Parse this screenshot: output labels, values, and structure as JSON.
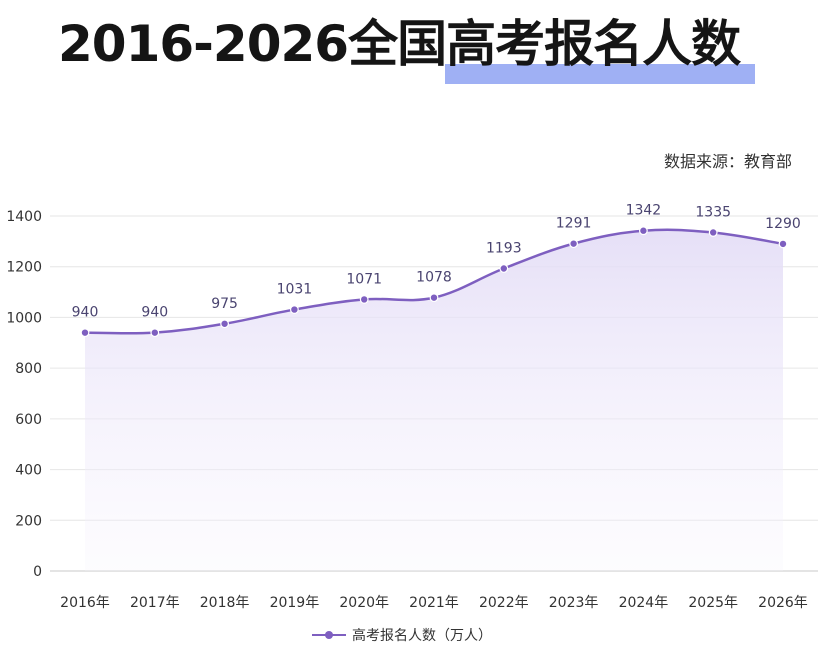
{
  "page": {
    "title": "2016-2026全国高考报名人数",
    "source": "数据来源：教育部"
  },
  "legend": {
    "label": "高考报名人数（万人）"
  },
  "colors": {
    "line": "#7e5fc0",
    "area": "#e8e2f7",
    "highlight": "#9fb0f4",
    "grid": "#e6e6e6"
  },
  "chart_data": {
    "type": "line",
    "categories": [
      "2016年",
      "2017年",
      "2018年",
      "2019年",
      "2020年",
      "2021年",
      "2022年",
      "2023年",
      "2024年",
      "2025年",
      "2026年"
    ],
    "series": [
      {
        "name": "高考报名人数（万人）",
        "values": [
          940,
          940,
          975,
          1031,
          1071,
          1078,
          1193,
          1291,
          1342,
          1335,
          1290
        ]
      }
    ],
    "yticks": [
      0,
      200,
      400,
      600,
      800,
      1000,
      1200,
      1400
    ],
    "ylim": [
      0,
      1400
    ],
    "grid": true,
    "smooth": true,
    "area_fill": true,
    "data_labels": true,
    "legend_position": "bottom"
  }
}
